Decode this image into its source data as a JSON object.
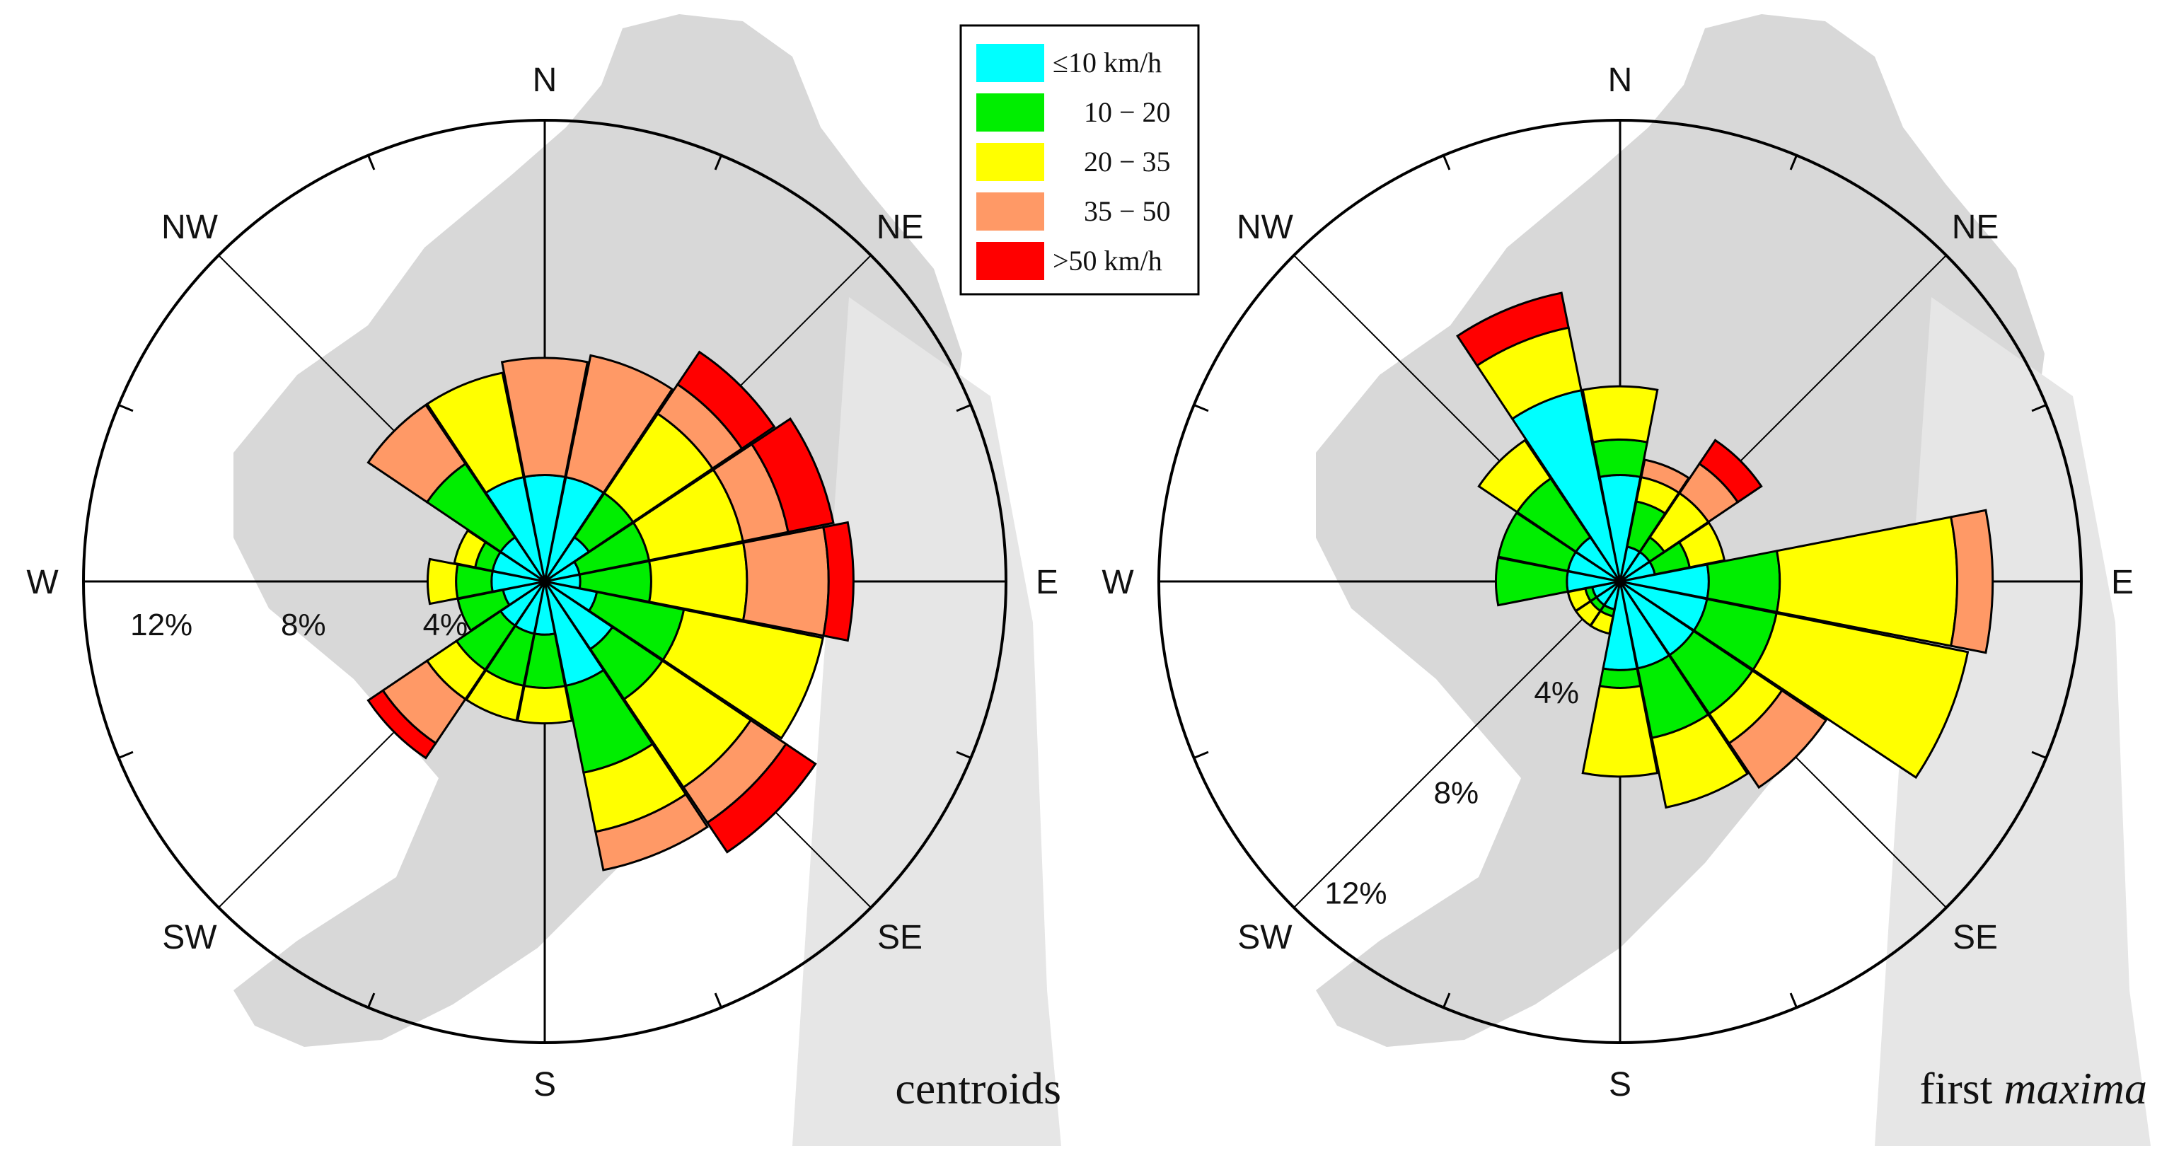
{
  "chart_data": [
    {
      "type": "wind-rose",
      "caption_text": "centroids",
      "caption_italic": "",
      "directions": [
        "N",
        "NE",
        "E",
        "SE",
        "S",
        "SW",
        "W",
        "NW"
      ],
      "sectors_deg": [
        0,
        22.5,
        45,
        67.5,
        90,
        112.5,
        135,
        157.5,
        180,
        202.5,
        225,
        247.5,
        270,
        292.5,
        315,
        337.5
      ],
      "radial_unit": "%",
      "radial_max": 13,
      "radial_ticks": [
        {
          "value": 4,
          "label": "4%"
        },
        {
          "value": 8,
          "label": "8%"
        },
        {
          "value": 12,
          "label": "12%"
        }
      ],
      "radial_label_direction_deg": 270,
      "series_cumulative_percent": [
        [
          3.0,
          3.0,
          3.0,
          6.3,
          6.3
        ],
        [
          3.0,
          3.0,
          3.0,
          6.5,
          6.5
        ],
        [
          1.5,
          3.0,
          5.7,
          6.7,
          7.8
        ],
        [
          1.0,
          3.0,
          5.7,
          7.0,
          8.3
        ],
        [
          1.0,
          3.0,
          5.7,
          8.0,
          8.7
        ],
        [
          1.5,
          4.0,
          8.0,
          8.0,
          8.0
        ],
        [
          2.3,
          4.0,
          7.0,
          8.2,
          9.2
        ],
        [
          3.0,
          5.5,
          7.2,
          8.3,
          8.3
        ],
        [
          1.5,
          3.0,
          4.0,
          4.0,
          4.0
        ],
        [
          1.5,
          3.0,
          4.0,
          4.0,
          4.0
        ],
        [
          1.5,
          3.0,
          4.0,
          5.5,
          6.0
        ],
        [
          1.2,
          2.5,
          2.5,
          2.5,
          2.5
        ],
        [
          1.5,
          2.5,
          3.3,
          3.3,
          3.3
        ],
        [
          1.5,
          2.0,
          2.6,
          2.6,
          2.6
        ],
        [
          1.5,
          4.0,
          4.0,
          6.0,
          6.0
        ],
        [
          3.0,
          3.0,
          6.0,
          6.0,
          6.0
        ]
      ]
    },
    {
      "type": "wind-rose",
      "caption_text": "first ",
      "caption_italic": "maxima",
      "directions": [
        "N",
        "NE",
        "E",
        "SE",
        "S",
        "SW",
        "W",
        "NW"
      ],
      "sectors_deg": [
        0,
        22.5,
        45,
        67.5,
        90,
        112.5,
        135,
        157.5,
        180,
        202.5,
        225,
        247.5,
        270,
        292.5,
        315,
        337.5
      ],
      "radial_unit": "%",
      "radial_max": 13,
      "radial_ticks": [
        {
          "value": 4,
          "label": "4%"
        },
        {
          "value": 8,
          "label": "8%"
        },
        {
          "value": 12,
          "label": "12%"
        }
      ],
      "radial_label_direction_deg": 225,
      "series_cumulative_percent": [
        [
          3.0,
          4.0,
          5.5,
          5.5,
          5.5
        ],
        [
          1.0,
          2.3,
          3.0,
          3.5,
          3.5
        ],
        [
          1.0,
          1.5,
          3.0,
          4.0,
          4.8
        ],
        [
          1.0,
          2.0,
          3.0,
          3.0,
          3.0
        ],
        [
          2.5,
          4.5,
          9.5,
          10.5,
          10.5
        ],
        [
          2.5,
          4.5,
          10.0,
          10.0,
          10.0
        ],
        [
          2.5,
          4.5,
          5.5,
          7.0,
          7.0
        ],
        [
          2.5,
          4.5,
          6.5,
          6.5,
          6.5
        ],
        [
          2.5,
          3.0,
          5.5,
          5.5,
          5.5
        ],
        [
          0.8,
          1.0,
          1.5,
          1.5,
          1.5
        ],
        [
          0.8,
          1.0,
          1.5,
          1.5,
          1.5
        ],
        [
          0.8,
          1.0,
          1.5,
          1.5,
          1.5
        ],
        [
          1.5,
          3.5,
          3.5,
          3.5,
          3.5
        ],
        [
          1.5,
          3.5,
          3.5,
          3.5,
          3.5
        ],
        [
          1.5,
          3.5,
          4.8,
          4.8,
          4.8
        ],
        [
          5.5,
          5.5,
          7.3,
          7.3,
          8.3
        ]
      ]
    }
  ],
  "legend": [
    {
      "label": "≤10 km/h",
      "color": "#00ffff"
    },
    {
      "label": "10 − 20",
      "color": "#00ee00"
    },
    {
      "label": "20 − 35",
      "color": "#ffff00"
    },
    {
      "label": "35 − 50",
      "color": "#ff9966"
    },
    {
      "label": ">50 km/h",
      "color": "#ff0000"
    }
  ]
}
